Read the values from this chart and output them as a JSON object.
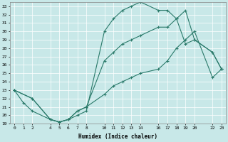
{
  "xlabel": "Humidex (Indice chaleur)",
  "background_color": "#c8e8e8",
  "line_color": "#2a7a6a",
  "ylim": [
    19,
    33.5
  ],
  "xlim": [
    -0.5,
    23.5
  ],
  "yticks": [
    19,
    20,
    21,
    22,
    23,
    24,
    25,
    26,
    27,
    28,
    29,
    30,
    31,
    32,
    33
  ],
  "xticks": [
    0,
    1,
    2,
    4,
    5,
    6,
    7,
    8,
    10,
    11,
    12,
    13,
    14,
    16,
    17,
    18,
    19,
    20,
    22,
    23
  ],
  "line1_x": [
    0,
    1,
    2,
    4,
    5,
    6,
    7,
    8,
    10,
    11,
    12,
    13,
    14,
    16,
    17,
    18,
    19,
    20,
    22,
    23
  ],
  "line1_y": [
    23.0,
    21.5,
    20.5,
    19.5,
    19.2,
    19.5,
    20.0,
    20.5,
    30.0,
    31.5,
    32.5,
    33.0,
    33.5,
    32.5,
    32.5,
    31.5,
    32.5,
    29.0,
    27.5,
    25.5
  ],
  "line2_x": [
    0,
    2,
    4,
    5,
    6,
    7,
    8,
    10,
    11,
    12,
    13,
    14,
    16,
    17,
    18,
    19,
    20,
    22,
    23
  ],
  "line2_y": [
    23.0,
    22.0,
    19.5,
    19.2,
    19.5,
    20.5,
    21.0,
    26.5,
    27.5,
    28.5,
    29.0,
    29.5,
    30.5,
    30.5,
    31.5,
    28.5,
    29.0,
    27.5,
    25.5
  ],
  "line3_x": [
    0,
    2,
    4,
    5,
    6,
    7,
    8,
    10,
    11,
    12,
    13,
    14,
    16,
    17,
    18,
    19,
    20,
    22,
    23
  ],
  "line3_y": [
    23.0,
    22.0,
    19.5,
    19.2,
    19.5,
    20.5,
    21.0,
    22.5,
    23.5,
    24.0,
    24.5,
    25.0,
    25.5,
    26.5,
    28.0,
    29.0,
    30.0,
    24.5,
    25.5
  ]
}
